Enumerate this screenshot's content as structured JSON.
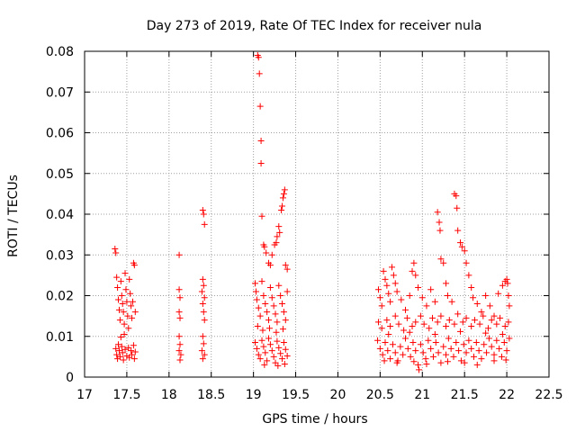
{
  "chart_data": {
    "type": "scatter",
    "title": "Day 273 of 2019, Rate Of TEC Index for receiver nula",
    "xlabel": "GPS time / hours",
    "ylabel": "ROTI / TECUs",
    "xlim": [
      17,
      22.5
    ],
    "ylim": [
      0,
      0.08
    ],
    "grid": true,
    "marker": "+",
    "color": "#ff0000",
    "x_ticks": [
      {
        "value": 17,
        "label": "17"
      },
      {
        "value": 17.5,
        "label": "17.5"
      },
      {
        "value": 18,
        "label": "18"
      },
      {
        "value": 18.5,
        "label": "18.5"
      },
      {
        "value": 19,
        "label": "19"
      },
      {
        "value": 19.5,
        "label": "19.5"
      },
      {
        "value": 20,
        "label": "20"
      },
      {
        "value": 20.5,
        "label": "20.5"
      },
      {
        "value": 21,
        "label": "21"
      },
      {
        "value": 21.5,
        "label": "21.5"
      },
      {
        "value": 22,
        "label": "22"
      },
      {
        "value": 22.5,
        "label": "22.5"
      }
    ],
    "y_ticks": [
      {
        "value": 0,
        "label": "0"
      },
      {
        "value": 0.01,
        "label": "0.01"
      },
      {
        "value": 0.02,
        "label": "0.02"
      },
      {
        "value": 0.03,
        "label": "0.03"
      },
      {
        "value": 0.04,
        "label": "0.04"
      },
      {
        "value": 0.05,
        "label": "0.05"
      },
      {
        "value": 0.06,
        "label": "0.06"
      },
      {
        "value": 0.07,
        "label": "0.07"
      },
      {
        "value": 0.08,
        "label": "0.08"
      }
    ],
    "points": [
      [
        17.36,
        0.0315
      ],
      [
        17.37,
        0.0305
      ],
      [
        17.38,
        0.0245
      ],
      [
        17.39,
        0.022
      ],
      [
        17.4,
        0.019
      ],
      [
        17.41,
        0.0165
      ],
      [
        17.42,
        0.014
      ],
      [
        17.43,
        0.0235
      ],
      [
        17.44,
        0.02
      ],
      [
        17.45,
        0.018
      ],
      [
        17.46,
        0.016
      ],
      [
        17.47,
        0.013
      ],
      [
        17.48,
        0.0255
      ],
      [
        17.49,
        0.0215
      ],
      [
        17.5,
        0.0185
      ],
      [
        17.51,
        0.015
      ],
      [
        17.52,
        0.012
      ],
      [
        17.53,
        0.024
      ],
      [
        17.54,
        0.0205
      ],
      [
        17.55,
        0.0175
      ],
      [
        17.56,
        0.0145
      ],
      [
        17.57,
        0.0185
      ],
      [
        17.58,
        0.028
      ],
      [
        17.59,
        0.0275
      ],
      [
        17.6,
        0.016
      ],
      [
        17.37,
        0.007
      ],
      [
        17.38,
        0.0055
      ],
      [
        17.39,
        0.0045
      ],
      [
        17.4,
        0.008
      ],
      [
        17.41,
        0.0065
      ],
      [
        17.42,
        0.005
      ],
      [
        17.44,
        0.0075
      ],
      [
        17.45,
        0.006
      ],
      [
        17.46,
        0.0042
      ],
      [
        17.48,
        0.0068
      ],
      [
        17.5,
        0.0052
      ],
      [
        17.52,
        0.0072
      ],
      [
        17.53,
        0.0048
      ],
      [
        17.55,
        0.0065
      ],
      [
        17.56,
        0.0055
      ],
      [
        17.58,
        0.0078
      ],
      [
        17.59,
        0.0045
      ],
      [
        17.6,
        0.0062
      ],
      [
        17.43,
        0.0098
      ],
      [
        17.47,
        0.0105
      ],
      [
        18.12,
        0.03
      ],
      [
        18.12,
        0.0215
      ],
      [
        18.13,
        0.0195
      ],
      [
        18.12,
        0.016
      ],
      [
        18.13,
        0.0145
      ],
      [
        18.12,
        0.01
      ],
      [
        18.13,
        0.008
      ],
      [
        18.12,
        0.0065
      ],
      [
        18.14,
        0.0055
      ],
      [
        18.13,
        0.0042
      ],
      [
        18.4,
        0.041
      ],
      [
        18.41,
        0.04
      ],
      [
        18.42,
        0.0375
      ],
      [
        18.4,
        0.024
      ],
      [
        18.41,
        0.0225
      ],
      [
        18.39,
        0.021
      ],
      [
        18.42,
        0.0195
      ],
      [
        18.4,
        0.018
      ],
      [
        18.41,
        0.016
      ],
      [
        18.42,
        0.014
      ],
      [
        18.4,
        0.01
      ],
      [
        18.41,
        0.0082
      ],
      [
        18.39,
        0.0065
      ],
      [
        18.42,
        0.0055
      ],
      [
        18.4,
        0.0045
      ],
      [
        19.05,
        0.079
      ],
      [
        19.06,
        0.0785
      ],
      [
        19.07,
        0.0745
      ],
      [
        19.08,
        0.0665
      ],
      [
        19.09,
        0.058
      ],
      [
        19.09,
        0.0525
      ],
      [
        19.1,
        0.0395
      ],
      [
        19.12,
        0.0325
      ],
      [
        19.13,
        0.032
      ],
      [
        19.15,
        0.0305
      ],
      [
        19.18,
        0.028
      ],
      [
        19.2,
        0.0275
      ],
      [
        19.25,
        0.0325
      ],
      [
        19.27,
        0.033
      ],
      [
        19.28,
        0.0345
      ],
      [
        19.3,
        0.037
      ],
      [
        19.33,
        0.041
      ],
      [
        19.35,
        0.044
      ],
      [
        19.36,
        0.045
      ],
      [
        19.37,
        0.046
      ],
      [
        19.34,
        0.042
      ],
      [
        19.38,
        0.0275
      ],
      [
        19.22,
        0.03
      ],
      [
        19.4,
        0.0265
      ],
      [
        19.31,
        0.0355
      ],
      [
        19.02,
        0.023
      ],
      [
        19.03,
        0.021
      ],
      [
        19.04,
        0.019
      ],
      [
        19.06,
        0.017
      ],
      [
        19.08,
        0.015
      ],
      [
        19.1,
        0.0235
      ],
      [
        19.12,
        0.02
      ],
      [
        19.14,
        0.018
      ],
      [
        19.16,
        0.016
      ],
      [
        19.18,
        0.014
      ],
      [
        19.2,
        0.022
      ],
      [
        19.22,
        0.0195
      ],
      [
        19.24,
        0.0175
      ],
      [
        19.26,
        0.0155
      ],
      [
        19.28,
        0.0135
      ],
      [
        19.3,
        0.0225
      ],
      [
        19.32,
        0.02
      ],
      [
        19.34,
        0.018
      ],
      [
        19.36,
        0.016
      ],
      [
        19.38,
        0.014
      ],
      [
        19.4,
        0.021
      ],
      [
        19.05,
        0.0125
      ],
      [
        19.11,
        0.0115
      ],
      [
        19.19,
        0.012
      ],
      [
        19.27,
        0.011
      ],
      [
        19.35,
        0.0118
      ],
      [
        19.02,
        0.0085
      ],
      [
        19.04,
        0.007
      ],
      [
        19.06,
        0.0055
      ],
      [
        19.08,
        0.0045
      ],
      [
        19.1,
        0.009
      ],
      [
        19.12,
        0.0075
      ],
      [
        19.14,
        0.006
      ],
      [
        19.16,
        0.004
      ],
      [
        19.18,
        0.0095
      ],
      [
        19.2,
        0.008
      ],
      [
        19.22,
        0.0065
      ],
      [
        19.24,
        0.005
      ],
      [
        19.26,
        0.0035
      ],
      [
        19.28,
        0.0088
      ],
      [
        19.3,
        0.0072
      ],
      [
        19.32,
        0.0058
      ],
      [
        19.34,
        0.0045
      ],
      [
        19.36,
        0.0085
      ],
      [
        19.38,
        0.0068
      ],
      [
        19.4,
        0.0052
      ],
      [
        19.13,
        0.003
      ],
      [
        19.29,
        0.0028
      ],
      [
        19.37,
        0.0032
      ],
      [
        20.48,
        0.0215
      ],
      [
        20.5,
        0.0195
      ],
      [
        20.52,
        0.0175
      ],
      [
        20.54,
        0.026
      ],
      [
        20.56,
        0.024
      ],
      [
        20.58,
        0.0225
      ],
      [
        20.6,
        0.0205
      ],
      [
        20.62,
        0.0185
      ],
      [
        20.64,
        0.027
      ],
      [
        20.66,
        0.025
      ],
      [
        20.68,
        0.023
      ],
      [
        20.7,
        0.021
      ],
      [
        20.75,
        0.019
      ],
      [
        20.8,
        0.0165
      ],
      [
        20.85,
        0.02
      ],
      [
        20.88,
        0.026
      ],
      [
        20.9,
        0.028
      ],
      [
        20.92,
        0.025
      ],
      [
        20.95,
        0.022
      ],
      [
        21.0,
        0.0195
      ],
      [
        21.05,
        0.0175
      ],
      [
        21.1,
        0.0215
      ],
      [
        21.15,
        0.0185
      ],
      [
        21.18,
        0.0405
      ],
      [
        21.2,
        0.038
      ],
      [
        21.21,
        0.036
      ],
      [
        21.22,
        0.029
      ],
      [
        21.25,
        0.028
      ],
      [
        21.28,
        0.023
      ],
      [
        21.3,
        0.02
      ],
      [
        21.35,
        0.0185
      ],
      [
        21.38,
        0.045
      ],
      [
        21.4,
        0.0445
      ],
      [
        21.41,
        0.0415
      ],
      [
        21.42,
        0.036
      ],
      [
        21.45,
        0.033
      ],
      [
        21.47,
        0.032
      ],
      [
        21.5,
        0.031
      ],
      [
        21.52,
        0.028
      ],
      [
        21.55,
        0.025
      ],
      [
        21.58,
        0.022
      ],
      [
        21.6,
        0.0195
      ],
      [
        21.65,
        0.018
      ],
      [
        21.7,
        0.016
      ],
      [
        21.75,
        0.02
      ],
      [
        21.8,
        0.0175
      ],
      [
        21.85,
        0.015
      ],
      [
        21.9,
        0.0205
      ],
      [
        21.95,
        0.0225
      ],
      [
        21.98,
        0.0235
      ],
      [
        22.0,
        0.024
      ],
      [
        22.01,
        0.023
      ],
      [
        22.02,
        0.02
      ],
      [
        22.03,
        0.0175
      ],
      [
        20.48,
        0.0135
      ],
      [
        20.52,
        0.012
      ],
      [
        20.58,
        0.014
      ],
      [
        20.62,
        0.0125
      ],
      [
        20.68,
        0.015
      ],
      [
        20.72,
        0.013
      ],
      [
        20.78,
        0.0115
      ],
      [
        20.82,
        0.0145
      ],
      [
        20.88,
        0.0125
      ],
      [
        20.92,
        0.0135
      ],
      [
        20.98,
        0.015
      ],
      [
        21.02,
        0.013
      ],
      [
        21.08,
        0.012
      ],
      [
        21.12,
        0.0145
      ],
      [
        21.18,
        0.0135
      ],
      [
        21.22,
        0.015
      ],
      [
        21.28,
        0.0125
      ],
      [
        21.32,
        0.014
      ],
      [
        21.38,
        0.013
      ],
      [
        21.42,
        0.0155
      ],
      [
        21.48,
        0.0135
      ],
      [
        21.52,
        0.0145
      ],
      [
        21.58,
        0.0125
      ],
      [
        21.62,
        0.014
      ],
      [
        21.68,
        0.013
      ],
      [
        21.72,
        0.015
      ],
      [
        21.78,
        0.012
      ],
      [
        21.82,
        0.014
      ],
      [
        21.88,
        0.013
      ],
      [
        21.92,
        0.0145
      ],
      [
        21.98,
        0.0125
      ],
      [
        22.02,
        0.0135
      ],
      [
        20.47,
        0.009
      ],
      [
        20.5,
        0.007
      ],
      [
        20.53,
        0.0055
      ],
      [
        20.56,
        0.0085
      ],
      [
        20.59,
        0.0065
      ],
      [
        20.62,
        0.0045
      ],
      [
        20.65,
        0.008
      ],
      [
        20.68,
        0.006
      ],
      [
        20.71,
        0.004
      ],
      [
        20.74,
        0.0075
      ],
      [
        20.77,
        0.0055
      ],
      [
        20.8,
        0.0095
      ],
      [
        20.83,
        0.007
      ],
      [
        20.86,
        0.005
      ],
      [
        20.89,
        0.0085
      ],
      [
        20.92,
        0.0065
      ],
      [
        20.95,
        0.003
      ],
      [
        20.98,
        0.008
      ],
      [
        21.01,
        0.006
      ],
      [
        21.04,
        0.0045
      ],
      [
        21.07,
        0.009
      ],
      [
        21.1,
        0.007
      ],
      [
        21.13,
        0.005
      ],
      [
        21.16,
        0.0085
      ],
      [
        21.19,
        0.006
      ],
      [
        21.22,
        0.0035
      ],
      [
        21.25,
        0.0075
      ],
      [
        21.28,
        0.0055
      ],
      [
        21.31,
        0.0095
      ],
      [
        21.34,
        0.007
      ],
      [
        21.37,
        0.005
      ],
      [
        21.4,
        0.0085
      ],
      [
        21.43,
        0.0065
      ],
      [
        21.46,
        0.004
      ],
      [
        21.49,
        0.008
      ],
      [
        21.52,
        0.006
      ],
      [
        21.55,
        0.009
      ],
      [
        21.58,
        0.007
      ],
      [
        21.61,
        0.005
      ],
      [
        21.64,
        0.0085
      ],
      [
        21.67,
        0.0065
      ],
      [
        21.7,
        0.0045
      ],
      [
        21.73,
        0.008
      ],
      [
        21.76,
        0.006
      ],
      [
        21.79,
        0.0095
      ],
      [
        21.82,
        0.0075
      ],
      [
        21.85,
        0.0055
      ],
      [
        21.88,
        0.009
      ],
      [
        21.91,
        0.007
      ],
      [
        21.94,
        0.005
      ],
      [
        21.97,
        0.0085
      ],
      [
        22.0,
        0.0065
      ],
      [
        22.03,
        0.0095
      ],
      [
        20.6,
        0.0105
      ],
      [
        20.85,
        0.011
      ],
      [
        21.15,
        0.0105
      ],
      [
        21.45,
        0.0112
      ],
      [
        21.75,
        0.0108
      ],
      [
        21.95,
        0.0105
      ],
      [
        20.55,
        0.004
      ],
      [
        20.7,
        0.0035
      ],
      [
        20.9,
        0.0038
      ],
      [
        21.05,
        0.0032
      ],
      [
        21.3,
        0.0038
      ],
      [
        21.5,
        0.0035
      ],
      [
        21.65,
        0.003
      ],
      [
        21.85,
        0.004
      ],
      [
        21.99,
        0.0042
      ],
      [
        20.96,
        0.0018
      ]
    ]
  }
}
